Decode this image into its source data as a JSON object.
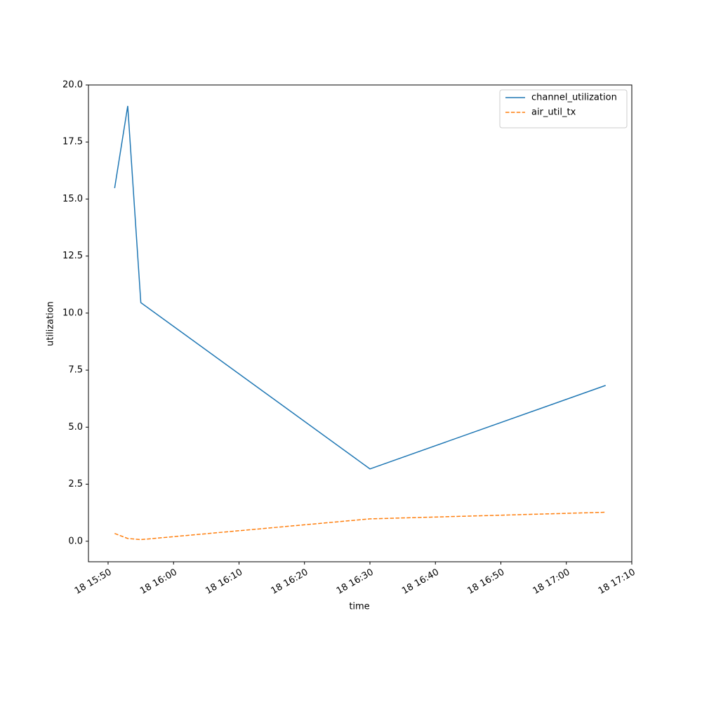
{
  "chart_data": {
    "type": "line",
    "x": [
      "18 15:51",
      "18 15:53",
      "18 15:55",
      "18 16:30",
      "18 17:06"
    ],
    "series": [
      {
        "name": "channel_utilization",
        "color": "#1f77b4",
        "dash": "solid",
        "values": [
          15.48,
          19.08,
          10.46,
          3.17,
          6.83
        ]
      },
      {
        "name": "air_util_tx",
        "color": "#ff7f0e",
        "dash": "dashed",
        "values": [
          0.34,
          0.12,
          0.07,
          0.98,
          1.27
        ]
      }
    ],
    "xlabel": "time",
    "ylabel": "utilization",
    "xlim": [
      "18 15:47",
      "18 17:10"
    ],
    "xticks": [
      "18 15:50",
      "18 16:00",
      "18 16:10",
      "18 16:20",
      "18 16:30",
      "18 16:40",
      "18 16:50",
      "18 17:00",
      "18 17:10"
    ],
    "ylim": [
      -0.9,
      20
    ],
    "yticks": [
      {
        "value": 0,
        "label": "0.0"
      },
      2.5,
      {
        "value": 5,
        "label": "5.0"
      },
      7.5,
      {
        "value": 10,
        "label": "10.0"
      },
      12.5,
      {
        "value": 15,
        "label": "15.0"
      },
      17.5,
      {
        "value": 20,
        "label": "20.0"
      }
    ],
    "legend": "upper right"
  }
}
